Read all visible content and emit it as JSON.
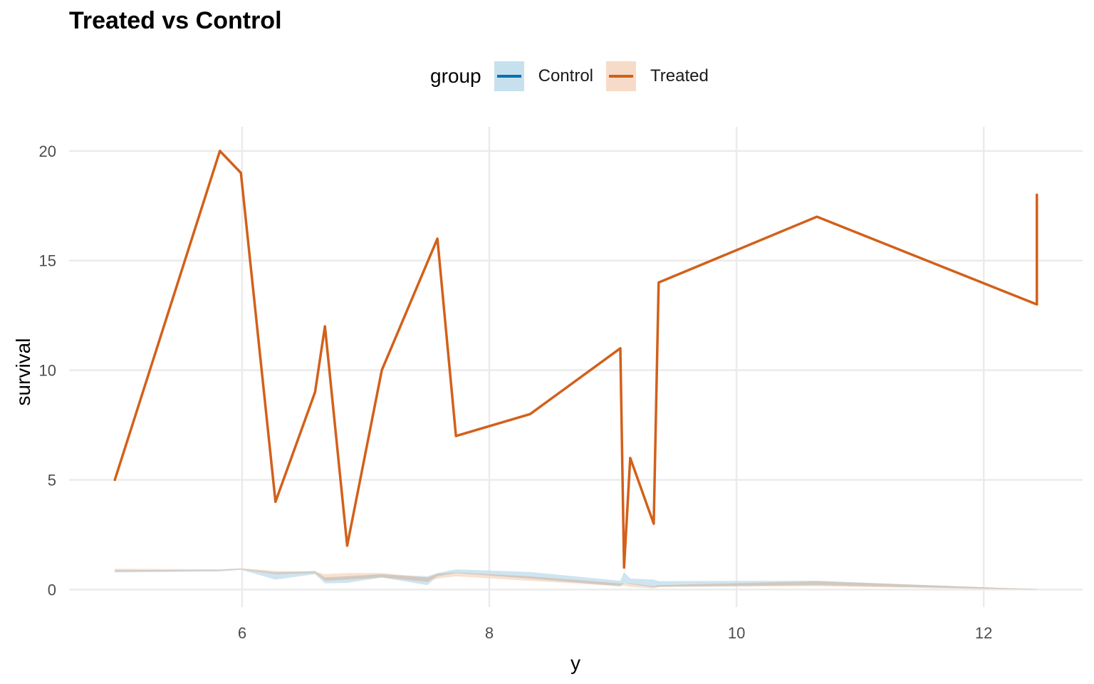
{
  "chart_data": {
    "type": "line",
    "title": "Treated vs Control",
    "xlabel": "y",
    "ylabel": "survival",
    "xlim": [
      4.6,
      12.8
    ],
    "ylim": [
      -0.8,
      21.1
    ],
    "x_ticks": [
      6,
      8,
      10,
      12
    ],
    "y_ticks": [
      0,
      5,
      10,
      15,
      20
    ],
    "grid": true,
    "legend": {
      "title": "group",
      "placement": "top",
      "entries": [
        "Control",
        "Treated"
      ]
    },
    "series": [
      {
        "name": "Treated",
        "color": "#d2601a",
        "points": [
          [
            4.97,
            5
          ],
          [
            5.82,
            20
          ],
          [
            5.99,
            19
          ],
          [
            6.27,
            4
          ],
          [
            6.59,
            9
          ],
          [
            6.67,
            12
          ],
          [
            6.85,
            2
          ],
          [
            7.13,
            10
          ],
          [
            7.58,
            16
          ],
          [
            7.73,
            7
          ],
          [
            8.33,
            8
          ],
          [
            9.06,
            11
          ],
          [
            9.09,
            1
          ],
          [
            9.14,
            6
          ],
          [
            9.33,
            3
          ],
          [
            9.37,
            14
          ],
          [
            10.65,
            17
          ],
          [
            12.43,
            13
          ],
          [
            12.43,
            18
          ]
        ]
      }
    ],
    "bands": [
      {
        "name": "Control",
        "fill": "#c6e0ee",
        "upper": [
          [
            4.97,
            0.88
          ],
          [
            5.82,
            0.9
          ],
          [
            5.99,
            0.95
          ],
          [
            6.27,
            0.78
          ],
          [
            6.59,
            0.85
          ],
          [
            6.67,
            0.55
          ],
          [
            6.85,
            0.6
          ],
          [
            7.13,
            0.7
          ],
          [
            7.5,
            0.6
          ],
          [
            7.58,
            0.75
          ],
          [
            7.73,
            0.92
          ],
          [
            8.33,
            0.8
          ],
          [
            9.06,
            0.4
          ],
          [
            9.09,
            0.8
          ],
          [
            9.14,
            0.5
          ],
          [
            9.33,
            0.45
          ],
          [
            9.37,
            0.38
          ],
          [
            10.65,
            0.4
          ],
          [
            12.0,
            0.1
          ],
          [
            12.43,
            0.02
          ]
        ],
        "lower": [
          [
            4.97,
            0.78
          ],
          [
            5.82,
            0.82
          ],
          [
            5.99,
            0.9
          ],
          [
            6.27,
            0.45
          ],
          [
            6.59,
            0.7
          ],
          [
            6.67,
            0.28
          ],
          [
            6.85,
            0.3
          ],
          [
            7.13,
            0.55
          ],
          [
            7.5,
            0.2
          ],
          [
            7.58,
            0.6
          ],
          [
            7.73,
            0.75
          ],
          [
            8.33,
            0.5
          ],
          [
            9.06,
            0.15
          ],
          [
            9.09,
            0.3
          ],
          [
            9.14,
            0.25
          ],
          [
            9.33,
            0.1
          ],
          [
            9.37,
            0.12
          ],
          [
            10.65,
            0.2
          ],
          [
            12.0,
            0.04
          ],
          [
            12.43,
            0.0
          ]
        ]
      },
      {
        "name": "Treated",
        "fill": "#f6dcc8",
        "upper": [
          [
            4.97,
            0.95
          ],
          [
            5.82,
            0.92
          ],
          [
            5.99,
            0.97
          ],
          [
            6.27,
            0.85
          ],
          [
            6.59,
            0.82
          ],
          [
            6.67,
            0.7
          ],
          [
            6.85,
            0.75
          ],
          [
            7.13,
            0.75
          ],
          [
            7.5,
            0.55
          ],
          [
            7.58,
            0.72
          ],
          [
            7.73,
            0.78
          ],
          [
            8.33,
            0.6
          ],
          [
            9.06,
            0.28
          ],
          [
            9.09,
            0.3
          ],
          [
            9.14,
            0.28
          ],
          [
            9.33,
            0.15
          ],
          [
            9.37,
            0.2
          ],
          [
            10.65,
            0.38
          ],
          [
            12.0,
            0.1
          ],
          [
            12.43,
            0.02
          ]
        ],
        "lower": [
          [
            4.97,
            0.82
          ],
          [
            5.82,
            0.86
          ],
          [
            5.99,
            0.92
          ],
          [
            6.27,
            0.7
          ],
          [
            6.59,
            0.75
          ],
          [
            6.67,
            0.4
          ],
          [
            6.85,
            0.45
          ],
          [
            7.13,
            0.55
          ],
          [
            7.5,
            0.35
          ],
          [
            7.58,
            0.5
          ],
          [
            7.73,
            0.6
          ],
          [
            8.33,
            0.4
          ],
          [
            9.06,
            0.15
          ],
          [
            9.09,
            0.18
          ],
          [
            9.14,
            0.12
          ],
          [
            9.33,
            0.05
          ],
          [
            9.37,
            0.12
          ],
          [
            10.65,
            0.15
          ],
          [
            12.0,
            0.03
          ],
          [
            12.43,
            0.0
          ]
        ]
      }
    ]
  },
  "legend_colors": {
    "Control": {
      "line": "#0072b2",
      "fill": "#c6e0ee"
    },
    "Treated": {
      "line": "#d2601a",
      "fill": "#f6dcc8"
    }
  }
}
